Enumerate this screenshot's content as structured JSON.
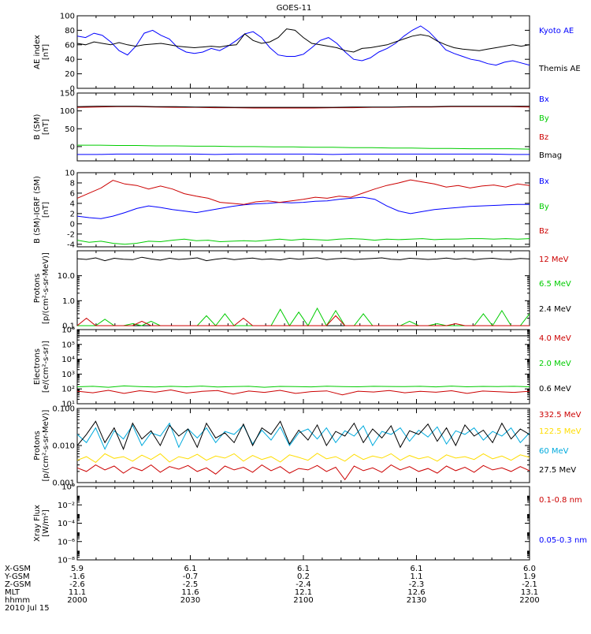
{
  "title": "GOES-11",
  "chart_data": [
    {
      "type": "line",
      "ylabel": [
        "AE index",
        "[nT]"
      ],
      "y_ticks": [
        "0",
        "20",
        "40",
        "60",
        "80",
        "100"
      ],
      "ylim": [
        0,
        100
      ],
      "legend": [
        {
          "label": "Kyoto AE",
          "color": "#0000ff"
        },
        {
          "label": "Themis AE",
          "color": "#000000"
        }
      ],
      "series": [
        {
          "name": "Kyoto AE",
          "color": "#0000ff",
          "values": [
            72,
            70,
            76,
            73,
            64,
            52,
            46,
            58,
            76,
            80,
            73,
            68,
            56,
            50,
            48,
            50,
            55,
            52,
            58,
            66,
            75,
            78,
            70,
            56,
            46,
            44,
            44,
            47,
            56,
            66,
            70,
            62,
            50,
            40,
            38,
            42,
            50,
            55,
            62,
            72,
            80,
            86,
            78,
            66,
            53,
            48,
            44,
            40,
            38,
            34,
            32,
            36,
            38,
            35,
            32
          ]
        },
        {
          "name": "Themis AE",
          "color": "#000000",
          "values": [
            62,
            60,
            64,
            62,
            60,
            63,
            60,
            58,
            60,
            61,
            62,
            60,
            58,
            57,
            56,
            57,
            58,
            57,
            59,
            60,
            75,
            66,
            62,
            64,
            70,
            82,
            80,
            70,
            62,
            60,
            58,
            56,
            52,
            50,
            55,
            56,
            58,
            60,
            64,
            68,
            72,
            74,
            72,
            65,
            60,
            56,
            54,
            53,
            52,
            54,
            56,
            58,
            60,
            58,
            60
          ]
        }
      ]
    },
    {
      "type": "line",
      "ylabel": [
        "B (SM)",
        "[nT]"
      ],
      "y_ticks": [
        "0",
        "50",
        "100",
        "150"
      ],
      "ylim": [
        -40,
        150
      ],
      "legend": [
        {
          "label": "Bx",
          "color": "#0000ff"
        },
        {
          "label": "By",
          "color": "#00cc00"
        },
        {
          "label": "Bz",
          "color": "#cc0000"
        },
        {
          "label": "Bmag",
          "color": "#000000"
        }
      ],
      "series": [
        {
          "name": "Bx",
          "color": "#0000ff",
          "values": [
            -22,
            -22,
            -21,
            -21,
            -21,
            -21,
            -21,
            -22,
            -21,
            -21,
            -21,
            -21,
            -21,
            -22,
            -21,
            -21,
            -21,
            -21,
            -21,
            -21,
            -21,
            -21,
            -22,
            -22
          ]
        },
        {
          "name": "By",
          "color": "#00cc00",
          "values": [
            4,
            4,
            3,
            3,
            2,
            2,
            1,
            1,
            0,
            0,
            -1,
            -1,
            -2,
            -2,
            -3,
            -3,
            -4,
            -4,
            -5,
            -5,
            -6,
            -6,
            -6,
            -7
          ]
        },
        {
          "name": "Bz",
          "color": "#cc0000",
          "values": [
            110,
            111,
            112,
            112,
            111,
            110,
            110,
            109,
            109,
            108,
            108,
            108,
            108,
            109,
            109,
            110,
            110,
            111,
            111,
            112,
            112,
            112,
            112,
            111
          ]
        },
        {
          "name": "Bmag",
          "color": "#000000",
          "values": [
            112,
            113,
            113,
            113,
            112,
            112,
            111,
            111,
            110,
            110,
            110,
            110,
            110,
            110,
            111,
            111,
            111,
            112,
            112,
            113,
            113,
            113,
            113,
            113
          ]
        }
      ]
    },
    {
      "type": "line",
      "ylabel": [
        "B (SM)-IGRF (SM)",
        "[nT]"
      ],
      "y_ticks": [
        "-4",
        "-2",
        "0",
        "2",
        "4",
        "6",
        "8",
        "10"
      ],
      "ylim": [
        -4.5,
        10
      ],
      "legend": [
        {
          "label": "Bx",
          "color": "#0000ff"
        },
        {
          "label": "By",
          "color": "#00cc00"
        },
        {
          "label": "Bz",
          "color": "#cc0000"
        }
      ],
      "series": [
        {
          "name": "Bx",
          "color": "#0000ff",
          "values": [
            1.5,
            1.2,
            1.0,
            1.5,
            2.2,
            3.0,
            3.5,
            3.2,
            2.8,
            2.5,
            2.2,
            2.6,
            3.0,
            3.4,
            3.7,
            3.9,
            4.0,
            4.2,
            4.1,
            4.2,
            4.4,
            4.5,
            4.8,
            5.0,
            5.2,
            4.8,
            3.5,
            2.5,
            2.0,
            2.4,
            2.8,
            3.0,
            3.2,
            3.4,
            3.5,
            3.6,
            3.7,
            3.8,
            3.8
          ]
        },
        {
          "name": "By",
          "color": "#00cc00",
          "values": [
            -3.2,
            -3.6,
            -3.4,
            -3.8,
            -4.0,
            -3.8,
            -3.4,
            -3.5,
            -3.2,
            -3.0,
            -3.3,
            -3.2,
            -3.5,
            -3.4,
            -3.3,
            -3.4,
            -3.2,
            -3.0,
            -3.2,
            -3.0,
            -3.1,
            -3.2,
            -3.0,
            -2.9,
            -3.0,
            -3.2,
            -3.0,
            -3.1,
            -3.0,
            -2.9,
            -3.1,
            -3.0,
            -3.0,
            -2.9,
            -2.9,
            -3.0,
            -2.9,
            -3.0,
            -2.9
          ]
        },
        {
          "name": "Bz",
          "color": "#cc0000",
          "values": [
            5.0,
            6.0,
            7.0,
            8.5,
            7.8,
            7.5,
            6.8,
            7.4,
            6.8,
            5.9,
            5.4,
            5.0,
            4.2,
            4.0,
            3.8,
            4.3,
            4.5,
            4.2,
            4.5,
            4.8,
            5.2,
            5.0,
            5.4,
            5.2,
            6.0,
            6.8,
            7.5,
            8.0,
            8.6,
            8.2,
            7.8,
            7.2,
            7.5,
            7.0,
            7.4,
            7.6,
            7.2,
            7.8,
            7.5
          ]
        }
      ]
    },
    {
      "type": "line",
      "log": true,
      "ylabel": [
        "Protons",
        "[p/(cm²-s-sr-MeV)]"
      ],
      "y_ticks": [
        "0.1",
        "1.0",
        "10.0"
      ],
      "ylim": [
        0.1,
        100
      ],
      "legend": [
        {
          "label": "12 MeV",
          "color": "#cc0000"
        },
        {
          "label": "6.5 MeV",
          "color": "#00cc00"
        },
        {
          "label": "2.4 MeV",
          "color": "#000000"
        }
      ],
      "series": [
        {
          "name": "2.4 MeV",
          "color": "#000000",
          "values": [
            48,
            45,
            52,
            40,
            50,
            46,
            44,
            55,
            47,
            42,
            50,
            45,
            48,
            52,
            40,
            46,
            50,
            44,
            48,
            51,
            45,
            47,
            43,
            50,
            46,
            49,
            52,
            44,
            48,
            50,
            45,
            47,
            49,
            52,
            46,
            44,
            50,
            48,
            45,
            47,
            51,
            46,
            49,
            44,
            48,
            50,
            46,
            45,
            49,
            47
          ]
        },
        {
          "name": "6.5 MeV",
          "color": "#00cc00",
          "values": [
            0.1,
            0.1,
            0.1,
            0.18,
            0.1,
            0.1,
            0.12,
            0.1,
            0.15,
            0.1,
            0.1,
            0.1,
            0.1,
            0.1,
            0.25,
            0.1,
            0.3,
            0.1,
            0.1,
            0.1,
            0.1,
            0.1,
            0.45,
            0.1,
            0.35,
            0.1,
            0.5,
            0.1,
            0.4,
            0.1,
            0.1,
            0.3,
            0.1,
            0.1,
            0.1,
            0.1,
            0.15,
            0.1,
            0.1,
            0.12,
            0.1,
            0.1,
            0.1,
            0.1,
            0.3,
            0.1,
            0.4,
            0.1,
            0.1,
            0.3
          ]
        },
        {
          "name": "12 MeV",
          "color": "#cc0000",
          "values": [
            0.1,
            0.2,
            0.1,
            0.1,
            0.1,
            0.1,
            0.1,
            0.15,
            0.1,
            0.1,
            0.1,
            0.1,
            0.1,
            0.1,
            0.1,
            0.1,
            0.1,
            0.1,
            0.2,
            0.1,
            0.1,
            0.1,
            0.1,
            0.1,
            0.1,
            0.1,
            0.1,
            0.1,
            0.25,
            0.1,
            0.1,
            0.1,
            0.1,
            0.1,
            0.1,
            0.1,
            0.1,
            0.1,
            0.1,
            0.1,
            0.1,
            0.12,
            0.1,
            0.1,
            0.1,
            0.1,
            0.1,
            0.1,
            0.1,
            0.1
          ]
        }
      ]
    },
    {
      "type": "line",
      "log": true,
      "ylabel": [
        "Electrons",
        "[e/(cm²-s-sr)]"
      ],
      "y_ticks": [
        "10¹",
        "10²",
        "10³",
        "10⁴",
        "10⁵",
        "10⁶"
      ],
      "ylim": [
        10,
        1000000
      ],
      "legend": [
        {
          "label": "4.0 MeV",
          "color": "#cc0000"
        },
        {
          "label": "2.0 MeV",
          "color": "#00cc00"
        },
        {
          "label": "0.6 MeV",
          "color": "#000000"
        }
      ],
      "series": [
        {
          "name": "0.6 MeV",
          "color": "#000000",
          "values": [
            380000,
            380000,
            380000,
            380000,
            380000,
            380000,
            380000,
            380000,
            380000,
            380000,
            380000,
            380000,
            380000,
            380000,
            380000,
            380000,
            380000,
            380000,
            380000,
            380000,
            380000,
            380000
          ]
        },
        {
          "name": "2.0 MeV",
          "color": "#00cc00",
          "values": [
            140,
            150,
            130,
            160,
            145,
            135,
            150,
            140,
            155,
            135,
            145,
            150,
            130,
            148,
            142,
            138,
            152,
            145,
            140,
            150,
            146,
            142,
            150,
            138,
            155,
            140,
            148,
            145,
            150,
            140
          ]
        },
        {
          "name": "4.0 MeV",
          "color": "#cc0000",
          "values": [
            70,
            55,
            80,
            50,
            75,
            60,
            85,
            52,
            68,
            78,
            45,
            72,
            58,
            80,
            50,
            66,
            74,
            40,
            70,
            62,
            78,
            55,
            68,
            60,
            75,
            50,
            72,
            65,
            58,
            70
          ]
        }
      ]
    },
    {
      "type": "line",
      "log": true,
      "ylabel": [
        "Protons",
        "[p/(cm²-s-sr-MeV)]"
      ],
      "y_ticks": [
        "0.001",
        "0.010",
        "0.100"
      ],
      "ylim": [
        0.001,
        0.1
      ],
      "legend": [
        {
          "label": "332.5 MeV",
          "color": "#cc0000"
        },
        {
          "label": "122.5 MeV",
          "color": "#ffdd00"
        },
        {
          "label": "60 MeV",
          "color": "#00aadd"
        },
        {
          "label": "27.5 MeV",
          "color": "#000000"
        }
      ],
      "series": [
        {
          "name": "60 MeV",
          "color": "#00aadd",
          "values": [
            0.02,
            0.012,
            0.03,
            0.008,
            0.025,
            0.015,
            0.035,
            0.01,
            0.022,
            0.018,
            0.04,
            0.009,
            0.028,
            0.016,
            0.03,
            0.012,
            0.024,
            0.02,
            0.035,
            0.011,
            0.026,
            0.014,
            0.032,
            0.01,
            0.022,
            0.028,
            0.015,
            0.03,
            0.012,
            0.025,
            0.018,
            0.034,
            0.01,
            0.024,
            0.02,
            0.03,
            0.013,
            0.026,
            0.017,
            0.032,
            0.011,
            0.025,
            0.02,
            0.03,
            0.014,
            0.024,
            0.018,
            0.03,
            0.012,
            0.022
          ]
        },
        {
          "name": "27.5 MeV",
          "color": "#000000",
          "values": [
            0.01,
            0.02,
            0.045,
            0.012,
            0.03,
            0.008,
            0.04,
            0.015,
            0.025,
            0.01,
            0.035,
            0.018,
            0.028,
            0.009,
            0.04,
            0.016,
            0.022,
            0.012,
            0.038,
            0.01,
            0.03,
            0.02,
            0.045,
            0.011,
            0.026,
            0.014,
            0.036,
            0.01,
            0.024,
            0.018,
            0.04,
            0.012,
            0.028,
            0.016,
            0.034,
            0.009,
            0.025,
            0.02,
            0.038,
            0.013,
            0.03,
            0.01,
            0.036,
            0.018,
            0.026,
            0.012,
            0.04,
            0.015,
            0.028,
            0.02
          ]
        },
        {
          "name": "122.5 MeV",
          "color": "#ffdd00",
          "values": [
            0.004,
            0.005,
            0.0035,
            0.006,
            0.0045,
            0.005,
            0.0038,
            0.0055,
            0.0042,
            0.006,
            0.0036,
            0.005,
            0.0044,
            0.0058,
            0.004,
            0.0052,
            0.0046,
            0.006,
            0.0038,
            0.0054,
            0.0042,
            0.005,
            0.0036,
            0.0056,
            0.0048,
            0.004,
            0.0062,
            0.0044,
            0.005,
            0.0038,
            0.0058,
            0.0042,
            0.0052,
            0.0046,
            0.006,
            0.004,
            0.0054,
            0.0044,
            0.005,
            0.0038,
            0.0056,
            0.0046,
            0.005,
            0.0042,
            0.006,
            0.0044,
            0.0052,
            0.004,
            0.0056,
            0.0048
          ]
        },
        {
          "name": "332.5 MeV",
          "color": "#cc0000",
          "values": [
            0.0025,
            0.002,
            0.003,
            0.0022,
            0.0028,
            0.0018,
            0.0026,
            0.0021,
            0.003,
            0.0019,
            0.0027,
            0.0023,
            0.0029,
            0.002,
            0.0025,
            0.0017,
            0.0028,
            0.0022,
            0.0026,
            0.0019,
            0.003,
            0.0021,
            0.0027,
            0.0018,
            0.0024,
            0.0022,
            0.0029,
            0.002,
            0.0026,
            0.0012,
            0.0028,
            0.0021,
            0.0025,
            0.0019,
            0.003,
            0.0022,
            0.0027,
            0.002,
            0.0024,
            0.0018,
            0.0028,
            0.0021,
            0.0026,
            0.0019,
            0.0029,
            0.0022,
            0.0025,
            0.002,
            0.0027,
            0.0021
          ]
        }
      ]
    },
    {
      "type": "line",
      "log": true,
      "ylabel": [
        "Xray Flux",
        "[W/m²]"
      ],
      "y_ticks": [
        "10⁻⁸",
        "10⁻⁶",
        "10⁻⁴",
        "10⁻²",
        "10⁰"
      ],
      "ylim": [
        1e-08,
        1
      ],
      "legend": [
        {
          "label": "0.1-0.8 nm",
          "color": "#cc0000"
        },
        {
          "label": "0.05-0.3 nm",
          "color": "#0000ff"
        }
      ],
      "series": []
    }
  ],
  "ephemeris": {
    "row_labels": [
      "X-GSM",
      "Y-GSM",
      "Z-GSM",
      "MLT",
      "hhmm",
      "2010 Jul 15"
    ],
    "columns": [
      {
        "x": "5.9",
        "y": "-1.6",
        "z": "-2.6",
        "mlt": "11.1",
        "hhmm": "2000"
      },
      {
        "x": "6.1",
        "y": "-0.7",
        "z": "-2.5",
        "mlt": "11.6",
        "hhmm": "2030"
      },
      {
        "x": "6.1",
        "y": "0.2",
        "z": "-2.4",
        "mlt": "12.1",
        "hhmm": "2100"
      },
      {
        "x": "6.1",
        "y": "1.1",
        "z": "-2.3",
        "mlt": "12.6",
        "hhmm": "2130"
      },
      {
        "x": "6.0",
        "y": "1.9",
        "z": "-2.1",
        "mlt": "13.1",
        "hhmm": "2200"
      }
    ]
  }
}
